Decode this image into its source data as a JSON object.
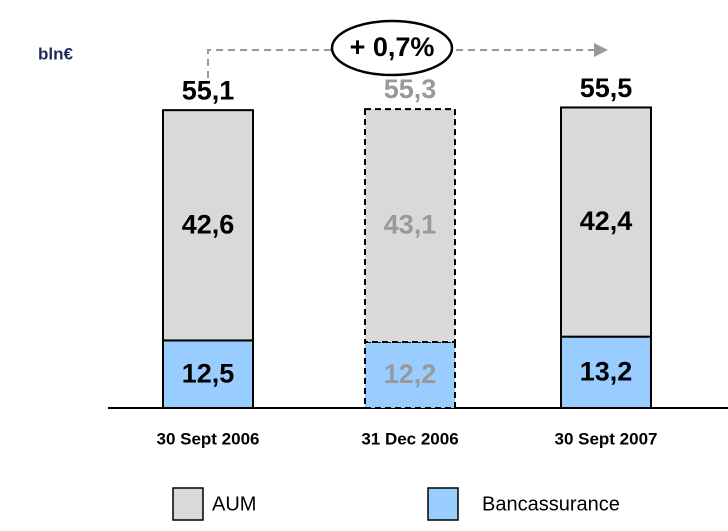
{
  "chart_data": {
    "type": "stacked_bar",
    "unit_label": "bln€",
    "annotation": "+ 0,7%",
    "categories": [
      "30 Sept 2006",
      "31 Dec 2006",
      "30 Sept 2007"
    ],
    "dashed": [
      false,
      true,
      false
    ],
    "series": [
      {
        "name": "Bancassurance",
        "color": "#99ccff",
        "values": [
          12.5,
          12.2,
          13.2
        ],
        "value_labels": [
          "12,5",
          "12,2",
          "13,2"
        ]
      },
      {
        "name": "AUM",
        "color": "#d9d9d9",
        "values": [
          42.6,
          43.1,
          42.4
        ],
        "value_labels": [
          "42,6",
          "43,1",
          "42,4"
        ]
      }
    ],
    "totals": [
      55.1,
      55.3,
      55.5
    ],
    "total_labels": [
      "55,1",
      "55,3",
      "55,5"
    ]
  }
}
